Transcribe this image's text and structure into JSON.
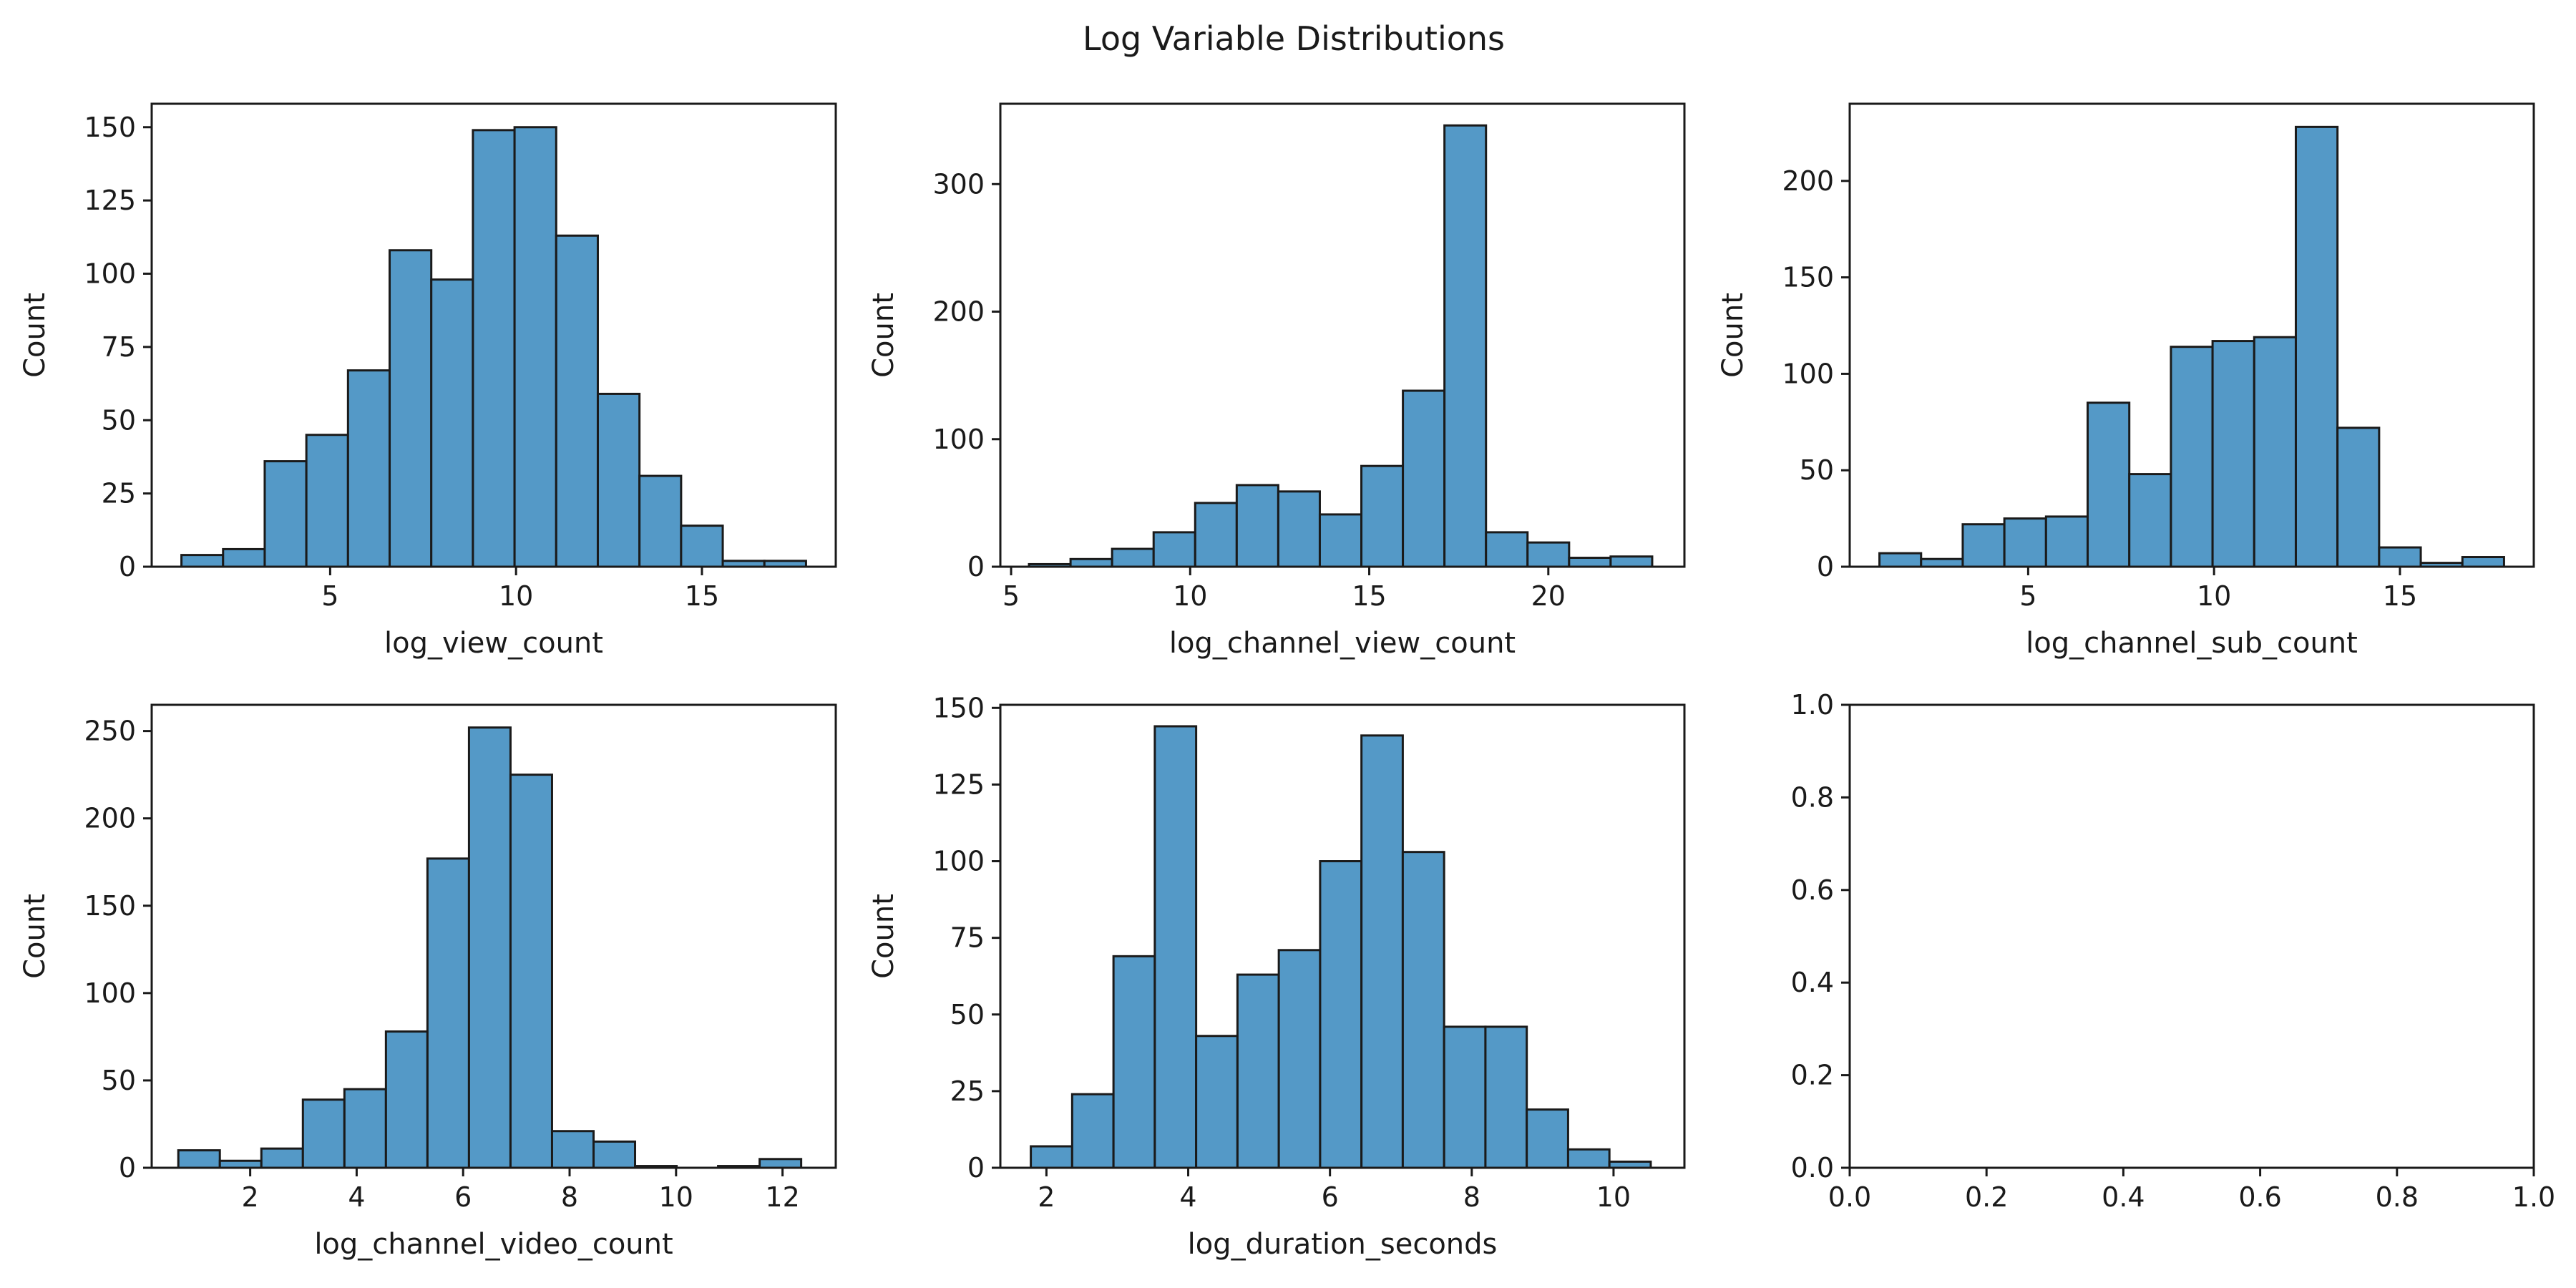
{
  "figure": {
    "title": "Log Variable Distributions"
  },
  "chart_data": [
    {
      "type": "bar",
      "subtype": "histogram",
      "xlabel": "log_view_count",
      "ylabel": "Count",
      "xlim": [
        0.2,
        18.6
      ],
      "ylim": [
        0,
        158
      ],
      "xticks": [
        5,
        10,
        15
      ],
      "yticks": [
        0,
        25,
        50,
        75,
        100,
        125,
        150
      ],
      "bin_edges": [
        1.0,
        2.12,
        3.24,
        4.36,
        5.48,
        6.6,
        7.72,
        8.84,
        9.96,
        11.08,
        12.2,
        13.32,
        14.44,
        15.56,
        16.68,
        17.8
      ],
      "values": [
        4,
        6,
        36,
        45,
        67,
        108,
        98,
        149,
        150,
        113,
        59,
        31,
        14,
        2,
        2
      ]
    },
    {
      "type": "bar",
      "subtype": "histogram",
      "xlabel": "log_channel_view_count",
      "ylabel": "Count",
      "xlim": [
        4.7,
        23.8
      ],
      "ylim": [
        0,
        363
      ],
      "xticks": [
        5,
        10,
        15,
        20
      ],
      "yticks": [
        0,
        100,
        200,
        300
      ],
      "bin_edges": [
        5.5,
        6.66,
        7.82,
        8.98,
        10.14,
        11.3,
        12.46,
        13.62,
        14.78,
        15.94,
        17.1,
        18.26,
        19.42,
        20.58,
        21.74,
        22.9
      ],
      "values": [
        2,
        6,
        14,
        27,
        50,
        64,
        59,
        41,
        79,
        138,
        346,
        27,
        19,
        7,
        8
      ]
    },
    {
      "type": "bar",
      "subtype": "histogram",
      "xlabel": "log_channel_sub_count",
      "ylabel": "Count",
      "xlim": [
        0.2,
        18.6
      ],
      "ylim": [
        0,
        240
      ],
      "xticks": [
        5,
        10,
        15
      ],
      "yticks": [
        0,
        50,
        100,
        150,
        200
      ],
      "bin_edges": [
        1.0,
        2.12,
        3.24,
        4.36,
        5.48,
        6.6,
        7.72,
        8.84,
        9.96,
        11.08,
        12.2,
        13.32,
        14.44,
        15.56,
        16.68,
        17.8
      ],
      "values": [
        7,
        4,
        22,
        25,
        26,
        85,
        48,
        114,
        117,
        119,
        228,
        72,
        10,
        2,
        5
      ]
    },
    {
      "type": "bar",
      "subtype": "histogram",
      "xlabel": "log_channel_video_count",
      "ylabel": "Count",
      "xlim": [
        0.15,
        13.0
      ],
      "ylim": [
        0,
        265
      ],
      "xticks": [
        2,
        4,
        6,
        8,
        10,
        12
      ],
      "yticks": [
        0,
        50,
        100,
        150,
        200,
        250
      ],
      "bin_edges": [
        0.65,
        1.43,
        2.21,
        2.99,
        3.77,
        4.55,
        5.33,
        6.11,
        6.89,
        7.67,
        8.45,
        9.23,
        10.01,
        10.79,
        11.57,
        12.35
      ],
      "values": [
        10,
        4,
        11,
        39,
        45,
        78,
        177,
        252,
        225,
        21,
        15,
        1,
        0,
        1,
        5
      ]
    },
    {
      "type": "bar",
      "subtype": "histogram",
      "xlabel": "log_duration_seconds",
      "ylabel": "Count",
      "xlim": [
        1.35,
        11.0
      ],
      "ylim": [
        0,
        151
      ],
      "xticks": [
        2,
        4,
        6,
        8,
        10
      ],
      "yticks": [
        0,
        25,
        50,
        75,
        100,
        125,
        150
      ],
      "bin_edges": [
        1.78,
        2.363,
        2.946,
        3.529,
        4.112,
        4.695,
        5.278,
        5.861,
        6.444,
        7.027,
        7.61,
        8.193,
        8.776,
        9.359,
        9.942,
        10.525
      ],
      "values": [
        7,
        24,
        69,
        144,
        43,
        63,
        71,
        100,
        141,
        103,
        46,
        46,
        19,
        6,
        2
      ]
    },
    {
      "type": "empty",
      "xlim": [
        0,
        1
      ],
      "ylim": [
        0,
        1
      ],
      "xticks": [
        0.0,
        0.2,
        0.4,
        0.6,
        0.8,
        1.0
      ],
      "yticks": [
        0.0,
        0.2,
        0.4,
        0.6,
        0.8,
        1.0
      ],
      "xtick_labels": [
        "0.0",
        "0.2",
        "0.4",
        "0.6",
        "0.8",
        "1.0"
      ],
      "ytick_labels": [
        "0.0",
        "0.2",
        "0.4",
        "0.6",
        "0.8",
        "1.0"
      ]
    }
  ]
}
